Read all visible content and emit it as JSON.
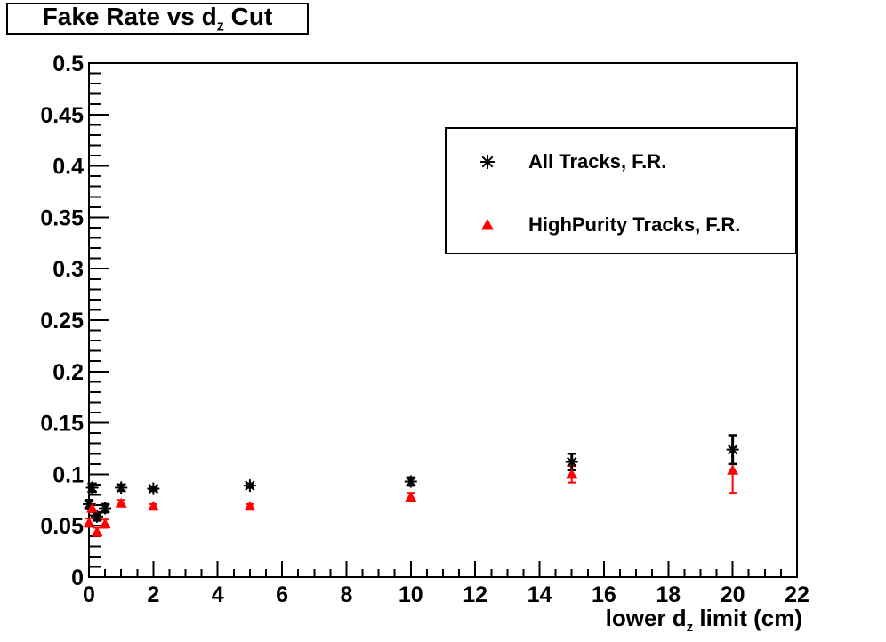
{
  "title": {
    "prefix": "Fake Rate vs d",
    "subscript": "z",
    "suffix": " Cut"
  },
  "axes": {
    "x_title": {
      "prefix": "lower d",
      "subscript": "z",
      "suffix": " limit (cm)"
    }
  },
  "legend": {
    "entries": [
      {
        "label": "All Tracks, F.R.",
        "marker": "asterisk-marker",
        "color": "#000000"
      },
      {
        "label": "HighPurity Tracks, F.R.",
        "marker": "triangle-marker",
        "color": "#ff0000"
      }
    ]
  },
  "colors": {
    "background": "#ffffff",
    "frame": "#000000",
    "all_tracks": "#000000",
    "highpurity_tracks": "#ff0000"
  },
  "chart_data": {
    "type": "scatter",
    "title": "Fake Rate vs d_z Cut",
    "xlabel": "lower d_z limit (cm)",
    "ylabel": "",
    "xlim": [
      0,
      22
    ],
    "ylim": [
      0,
      0.5
    ],
    "grid": false,
    "legend_position": "upper right",
    "x_major_ticks": [
      0,
      2,
      4,
      6,
      8,
      10,
      12,
      14,
      16,
      18,
      20,
      22
    ],
    "x_tick_labels": [
      "0",
      "2",
      "4",
      "6",
      "8",
      "10",
      "12",
      "14",
      "16",
      "18",
      "20",
      "22"
    ],
    "x_minor_step": 0.5,
    "y_major_ticks": [
      0,
      0.05,
      0.1,
      0.15,
      0.2,
      0.25,
      0.3,
      0.35,
      0.4,
      0.45,
      0.5
    ],
    "y_tick_labels": [
      "0",
      "0.05",
      "0.1",
      "0.15",
      "0.2",
      "0.25",
      "0.3",
      "0.35",
      "0.4",
      "0.45",
      "0.5"
    ],
    "y_minor_step": 0.01,
    "series": [
      {
        "name": "All Tracks, F.R.",
        "marker": "asterisk",
        "color": "#000000",
        "x": [
          0,
          0.1,
          0.25,
          0.5,
          1,
          2,
          5,
          10,
          15,
          20
        ],
        "y": [
          0.071,
          0.087,
          0.059,
          0.067,
          0.087,
          0.086,
          0.089,
          0.093,
          0.112,
          0.124
        ],
        "yerr": [
          0.004,
          0.004,
          0.004,
          0.004,
          0.003,
          0.002,
          0.002,
          0.004,
          0.008,
          0.014
        ]
      },
      {
        "name": "HighPurity Tracks, F.R.",
        "marker": "triangle",
        "color": "#ff0000",
        "x": [
          0,
          0.1,
          0.25,
          0.5,
          1,
          2,
          5,
          10,
          15,
          20
        ],
        "y": [
          0.053,
          0.067,
          0.044,
          0.052,
          0.072,
          0.069,
          0.069,
          0.078,
          0.1,
          0.104
        ],
        "yerr": [
          0.004,
          0.004,
          0.004,
          0.004,
          0.003,
          0.002,
          0.002,
          0.004,
          0.008,
          0.022
        ]
      }
    ]
  }
}
